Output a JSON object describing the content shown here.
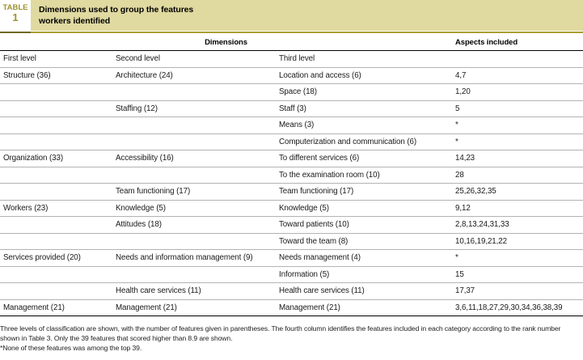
{
  "header": {
    "label_word": "TABLE",
    "label_number": "1",
    "title_line1": "Dimensions used to group the features",
    "title_line2": "workers identified"
  },
  "columns": {
    "group_header": "Dimensions",
    "aspects_header": "Aspects included",
    "level_headers": [
      "First level",
      "Second level",
      "Third level"
    ]
  },
  "rows": [
    {
      "first": "Structure (36)",
      "second": "Architecture (24)",
      "third": "Location and access (6)",
      "aspects": "4,7"
    },
    {
      "first": "",
      "second": "",
      "third": "Space (18)",
      "aspects": "1,20"
    },
    {
      "first": "",
      "second": "Staffing (12)",
      "third": "Staff (3)",
      "aspects": "5"
    },
    {
      "first": "",
      "second": "",
      "third": "Means (3)",
      "aspects": "*"
    },
    {
      "first": "",
      "second": "",
      "third": "Computerization and communication (6)",
      "aspects": "*"
    },
    {
      "first": "Organization (33)",
      "second": "Accessibility (16)",
      "third": "To different services (6)",
      "aspects": "14,23"
    },
    {
      "first": "",
      "second": "",
      "third": "To the examination room (10)",
      "aspects": "28"
    },
    {
      "first": "",
      "second": "Team functioning (17)",
      "third": "Team functioning (17)",
      "aspects": "25,26,32,35"
    },
    {
      "first": "Workers (23)",
      "second": "Knowledge (5)",
      "third": "Knowledge (5)",
      "aspects": "9,12"
    },
    {
      "first": "",
      "second": "Attitudes (18)",
      "third": "Toward patients (10)",
      "aspects": "2,8,13,24,31,33"
    },
    {
      "first": "",
      "second": "",
      "third": "Toward the team (8)",
      "aspects": "10,16,19,21,22"
    },
    {
      "first": "Services provided (20)",
      "second": "Needs and information management (9)",
      "third": "Needs management (4)",
      "aspects": "*"
    },
    {
      "first": "",
      "second": "",
      "third": "Information (5)",
      "aspects": "15"
    },
    {
      "first": "",
      "second": "Health care services (11)",
      "third": "Health care services (11)",
      "aspects": "17,37"
    },
    {
      "first": "Management (21)",
      "second": "Management (21)",
      "third": "Management (21)",
      "aspects": "3,6,11,18,27,29,30,34,36,38,39"
    }
  ],
  "footnotes": {
    "note": "Three levels of classification are shown, with the number of features given in parentheses. The fourth column identifies the features included in each category according to the rank number shown in Table 3. Only the 39 features that scored higher than 8.9 are shown.",
    "asterisk_note": "*None of these features was among the top 39."
  },
  "colors": {
    "title_band": "#e0d9a0",
    "accent_olive_text": "#9c922c",
    "rule_gold": "#a89f33",
    "rule_gold_dark": "#6f6a1d",
    "row_rule": "#b3b3b3"
  }
}
